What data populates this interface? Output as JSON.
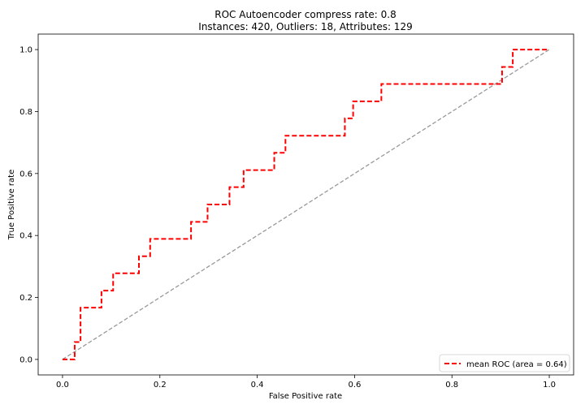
{
  "chart_data": {
    "type": "line",
    "title_line1": "ROC Autoencoder compress rate: 0.8",
    "title_line2": "Instances: 420, Outliers: 18, Attributes: 129",
    "xlabel": "False Positive rate",
    "ylabel": "True Positive rate",
    "xlim": [
      -0.05,
      1.05
    ],
    "ylim": [
      -0.05,
      1.05
    ],
    "xticks": [
      0.0,
      0.2,
      0.4,
      0.6,
      0.8,
      1.0
    ],
    "yticks": [
      0.0,
      0.2,
      0.4,
      0.6,
      0.8,
      1.0
    ],
    "xtick_labels": [
      "0.0",
      "0.2",
      "0.4",
      "0.6",
      "0.8",
      "1.0"
    ],
    "ytick_labels": [
      "0.0",
      "0.2",
      "0.4",
      "0.6",
      "0.8",
      "1.0"
    ],
    "legend_position": "lower-right",
    "series": [
      {
        "name": "mean ROC (area = 0.64)",
        "color": "#ff0000",
        "style": "dashed",
        "x": [
          0.0,
          0.025,
          0.025,
          0.037,
          0.037,
          0.08,
          0.08,
          0.104,
          0.104,
          0.157,
          0.157,
          0.18,
          0.18,
          0.264,
          0.264,
          0.298,
          0.298,
          0.343,
          0.343,
          0.372,
          0.372,
          0.435,
          0.435,
          0.458,
          0.458,
          0.58,
          0.58,
          0.597,
          0.597,
          0.655,
          0.655,
          0.903,
          0.903,
          0.925,
          0.925,
          1.0
        ],
        "y": [
          0.0,
          0.0,
          0.056,
          0.056,
          0.167,
          0.167,
          0.222,
          0.222,
          0.278,
          0.278,
          0.333,
          0.333,
          0.389,
          0.389,
          0.444,
          0.444,
          0.5,
          0.5,
          0.556,
          0.556,
          0.611,
          0.611,
          0.667,
          0.667,
          0.722,
          0.722,
          0.778,
          0.778,
          0.833,
          0.833,
          0.889,
          0.889,
          0.944,
          0.944,
          1.0,
          1.0
        ]
      },
      {
        "name": "",
        "color": "#999999",
        "style": "dashed",
        "x": [
          0.0,
          1.0
        ],
        "y": [
          0.0,
          1.0
        ]
      }
    ]
  }
}
